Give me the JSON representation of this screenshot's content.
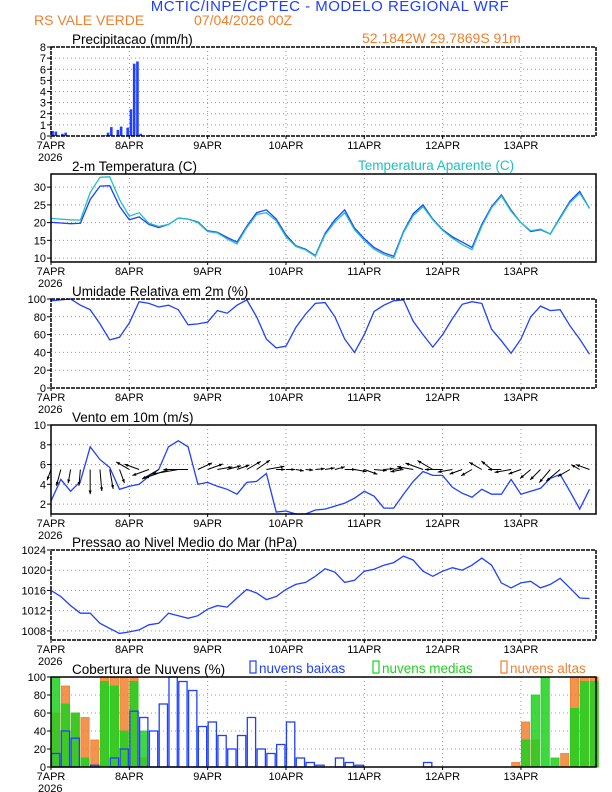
{
  "header": {
    "title": "MCTIC/INPE/CPTEC - MODELO REGIONAL WRF",
    "location": "RS VALE VERDE",
    "run": "07/04/2026 00Z",
    "coords": "52.1842W 29.7869S 91m"
  },
  "colors": {
    "title": "#2040ff",
    "orange": "#f08030",
    "series": "#2040ff",
    "apparent": "#20c0c0",
    "mid": "#20d020",
    "high": "#f08030"
  },
  "x_ticks": [
    "7APR",
    "8APR",
    "9APR",
    "10APR",
    "11APR",
    "12APR",
    "13APR"
  ],
  "x_year": "2026",
  "chart_data": [
    {
      "type": "bar",
      "title": "Precipitacao (mm/h)",
      "ylim": [
        0,
        8
      ],
      "yticks": [
        "0",
        "1",
        "2",
        "3",
        "4",
        "5",
        "6",
        "7",
        "8"
      ],
      "x_unit": "hours since 7APR 00Z",
      "points": [
        [
          0,
          0.45
        ],
        [
          1,
          0.4
        ],
        [
          3,
          0.2
        ],
        [
          4,
          0.3
        ],
        [
          16,
          0.05
        ],
        [
          17,
          0.3
        ],
        [
          18,
          0.8
        ],
        [
          20,
          0.55
        ],
        [
          21,
          0.85
        ],
        [
          23,
          0.75
        ],
        [
          24,
          2.4
        ],
        [
          25,
          6.5
        ],
        [
          26,
          6.7
        ],
        [
          27,
          0.2
        ],
        [
          30,
          0.1
        ],
        [
          38,
          0.03
        ],
        [
          40,
          0.03
        ],
        [
          42,
          0.03
        ],
        [
          44,
          0.03
        ],
        [
          46,
          0.03
        ]
      ]
    },
    {
      "type": "line",
      "title": "2-m Temperatura (C)",
      "legend": "Temperatura Aparente (C)",
      "ylim": [
        8.9,
        33.7
      ],
      "yticks": [
        "10",
        "15",
        "20",
        "25",
        "30"
      ],
      "x_step_hours": 3,
      "series": [
        {
          "values": [
            20.1,
            19.9,
            19.7,
            19.8,
            26.5,
            30.3,
            30.4,
            24.6,
            20.8,
            21.6,
            19.5,
            18.6,
            19.5,
            21.3,
            21,
            20.2,
            17.7,
            17.3,
            15.8,
            14.5,
            19,
            22.8,
            23.6,
            21,
            16.5,
            13.5,
            12.5,
            10.7,
            17,
            20.8,
            23.6,
            18.5,
            15.5,
            13,
            11.5,
            10.5,
            17.5,
            22.5,
            25,
            21,
            18,
            16,
            14.5,
            13,
            19.5,
            24.5,
            27.8,
            23.5,
            20,
            17.5,
            18,
            16.8,
            21.5,
            26,
            28.8,
            24
          ]
        },
        {
          "name": "Temperatura Aparente (C)",
          "values": [
            21.2,
            21,
            20.8,
            20.7,
            28.5,
            32.8,
            32.9,
            26.5,
            21.8,
            22.8,
            19.8,
            18.9,
            19.5,
            21.3,
            21,
            20,
            17.5,
            17.1,
            15.4,
            14,
            18.6,
            22.3,
            22.8,
            20.5,
            16,
            13.3,
            12.3,
            10.5,
            16.6,
            20.2,
            22.8,
            18,
            15,
            12.5,
            11,
            10,
            17.2,
            22,
            24.5,
            20.8,
            17.8,
            15.6,
            13.8,
            12.4,
            19,
            24.2,
            27.5,
            23.2,
            20,
            17.7,
            18.2,
            16.8,
            21.2,
            25.6,
            28.3,
            24
          ]
        }
      ]
    },
    {
      "type": "line",
      "title": "Umidade Relativa em 2m (%)",
      "ylim": [
        0,
        100
      ],
      "yticks": [
        "0",
        "20",
        "40",
        "60",
        "80",
        "100"
      ],
      "x_step_hours": 3,
      "series": [
        {
          "values": [
            98,
            99,
            100,
            93,
            88,
            72,
            54,
            57,
            73,
            97,
            95,
            91,
            93,
            88,
            71,
            72,
            74,
            87,
            84,
            93,
            99,
            80,
            55,
            45,
            47,
            68,
            83,
            95,
            96,
            80,
            55,
            40,
            60,
            86,
            93,
            98,
            99,
            75,
            60,
            46,
            60,
            78,
            94,
            97,
            95,
            66,
            53,
            39,
            55,
            80,
            92,
            87,
            88,
            70,
            55,
            38
          ]
        }
      ]
    },
    {
      "type": "line",
      "title": "Vento em 10m (m/s)",
      "ylim": [
        1,
        10
      ],
      "yticks": [
        "2",
        "4",
        "6",
        "8",
        "10"
      ],
      "x_step_hours": 3,
      "series": [
        {
          "values": [
            2.3,
            4.5,
            3.3,
            4.3,
            7.8,
            6.5,
            5.7,
            3.5,
            3.8,
            4,
            4.8,
            5.5,
            7.8,
            8.4,
            7.8,
            4,
            4.2,
            3.8,
            3.5,
            3,
            4.2,
            4.3,
            5.1,
            1.2,
            1.3,
            0.9,
            0.7,
            1.4,
            1.5,
            1.8,
            2.1,
            2.6,
            3.3,
            2.8,
            1.6,
            1.6,
            3,
            4.3,
            5.3,
            4.9,
            4.9,
            3.7,
            3.1,
            2.7,
            3.5,
            3,
            3,
            4.5,
            3,
            3.3,
            3.6,
            4.6,
            5,
            3.3,
            1.5,
            3.5
          ]
        }
      ],
      "wind_direction_to_deg": [
        200,
        195,
        190,
        185,
        180,
        175,
        170,
        160,
        300,
        290,
        250,
        240,
        250,
        260,
        270,
        65,
        70,
        80,
        75,
        70,
        60,
        55,
        80,
        90,
        90,
        100,
        95,
        85,
        80,
        75,
        90,
        100,
        110,
        95,
        85,
        80,
        260,
        280,
        290,
        300,
        270,
        260,
        250,
        240,
        300,
        310,
        270,
        260,
        250,
        230,
        225,
        220,
        230,
        240,
        300,
        290
      ]
    },
    {
      "type": "line",
      "title": "Pressao ao Nivel Medio do Mar (hPa)",
      "ylim": [
        1006.2,
        1024
      ],
      "yticks": [
        "1008",
        "1012",
        "1016",
        "1020",
        "1024"
      ],
      "x_step_hours": 3,
      "series": [
        {
          "values": [
            1016,
            1014.8,
            1013,
            1011.5,
            1011.5,
            1009.5,
            1008.5,
            1007.5,
            1007.8,
            1008.2,
            1009.2,
            1009.5,
            1011.5,
            1011,
            1010.5,
            1011,
            1012.3,
            1013,
            1012.7,
            1014.5,
            1016.2,
            1015.5,
            1014.2,
            1014.8,
            1016.2,
            1017.2,
            1017.6,
            1018.8,
            1020.3,
            1019.6,
            1017.6,
            1018,
            1019.8,
            1020.2,
            1021,
            1021.5,
            1022.8,
            1022,
            1019.8,
            1018.8,
            1019.8,
            1020.5,
            1020,
            1021,
            1022.4,
            1021,
            1017.5,
            1016.5,
            1017.5,
            1017.8,
            1016.5,
            1017.2,
            1018.4,
            1016.5,
            1014.5,
            1014.4
          ]
        }
      ]
    },
    {
      "type": "bar",
      "title": "Cobertura de Nuvens (%)",
      "ylim": [
        0,
        100
      ],
      "yticks": [
        "0",
        "20",
        "40",
        "60",
        "80",
        "100"
      ],
      "x_step_hours": 3,
      "series": [
        {
          "name": "nuvens baixas",
          "values": [
            15,
            40,
            32,
            0,
            2,
            0,
            10,
            20,
            62,
            55,
            40,
            70,
            100,
            95,
            85,
            45,
            50,
            35,
            20,
            35,
            55,
            20,
            15,
            25,
            50,
            10,
            5,
            2,
            0,
            10,
            5,
            2,
            0,
            0,
            0,
            0,
            0,
            0,
            5,
            0,
            0,
            0,
            0,
            0,
            0,
            0,
            0,
            0,
            0,
            0,
            0,
            0,
            0,
            0,
            0,
            0
          ]
        },
        {
          "name": "nuvens medias",
          "values": [
            100,
            70,
            60,
            10,
            0,
            95,
            90,
            40,
            95,
            40,
            0,
            0,
            0,
            0,
            0,
            0,
            0,
            0,
            0,
            0,
            0,
            0,
            0,
            0,
            0,
            0,
            0,
            0,
            0,
            0,
            0,
            0,
            0,
            0,
            0,
            0,
            0,
            0,
            0,
            0,
            0,
            0,
            0,
            0,
            0,
            0,
            0,
            0,
            30,
            80,
            100,
            10,
            0,
            65,
            95,
            95
          ]
        },
        {
          "name": "nuvens altas",
          "values": [
            60,
            90,
            60,
            55,
            30,
            100,
            100,
            100,
            100,
            10,
            0,
            0,
            0,
            0,
            0,
            0,
            0,
            0,
            0,
            0,
            0,
            0,
            0,
            0,
            0,
            0,
            0,
            0,
            0,
            0,
            0,
            0,
            0,
            0,
            0,
            0,
            0,
            0,
            0,
            0,
            0,
            0,
            0,
            0,
            0,
            0,
            0,
            5,
            50,
            30,
            0,
            0,
            15,
            100,
            100,
            100
          ]
        }
      ]
    }
  ]
}
